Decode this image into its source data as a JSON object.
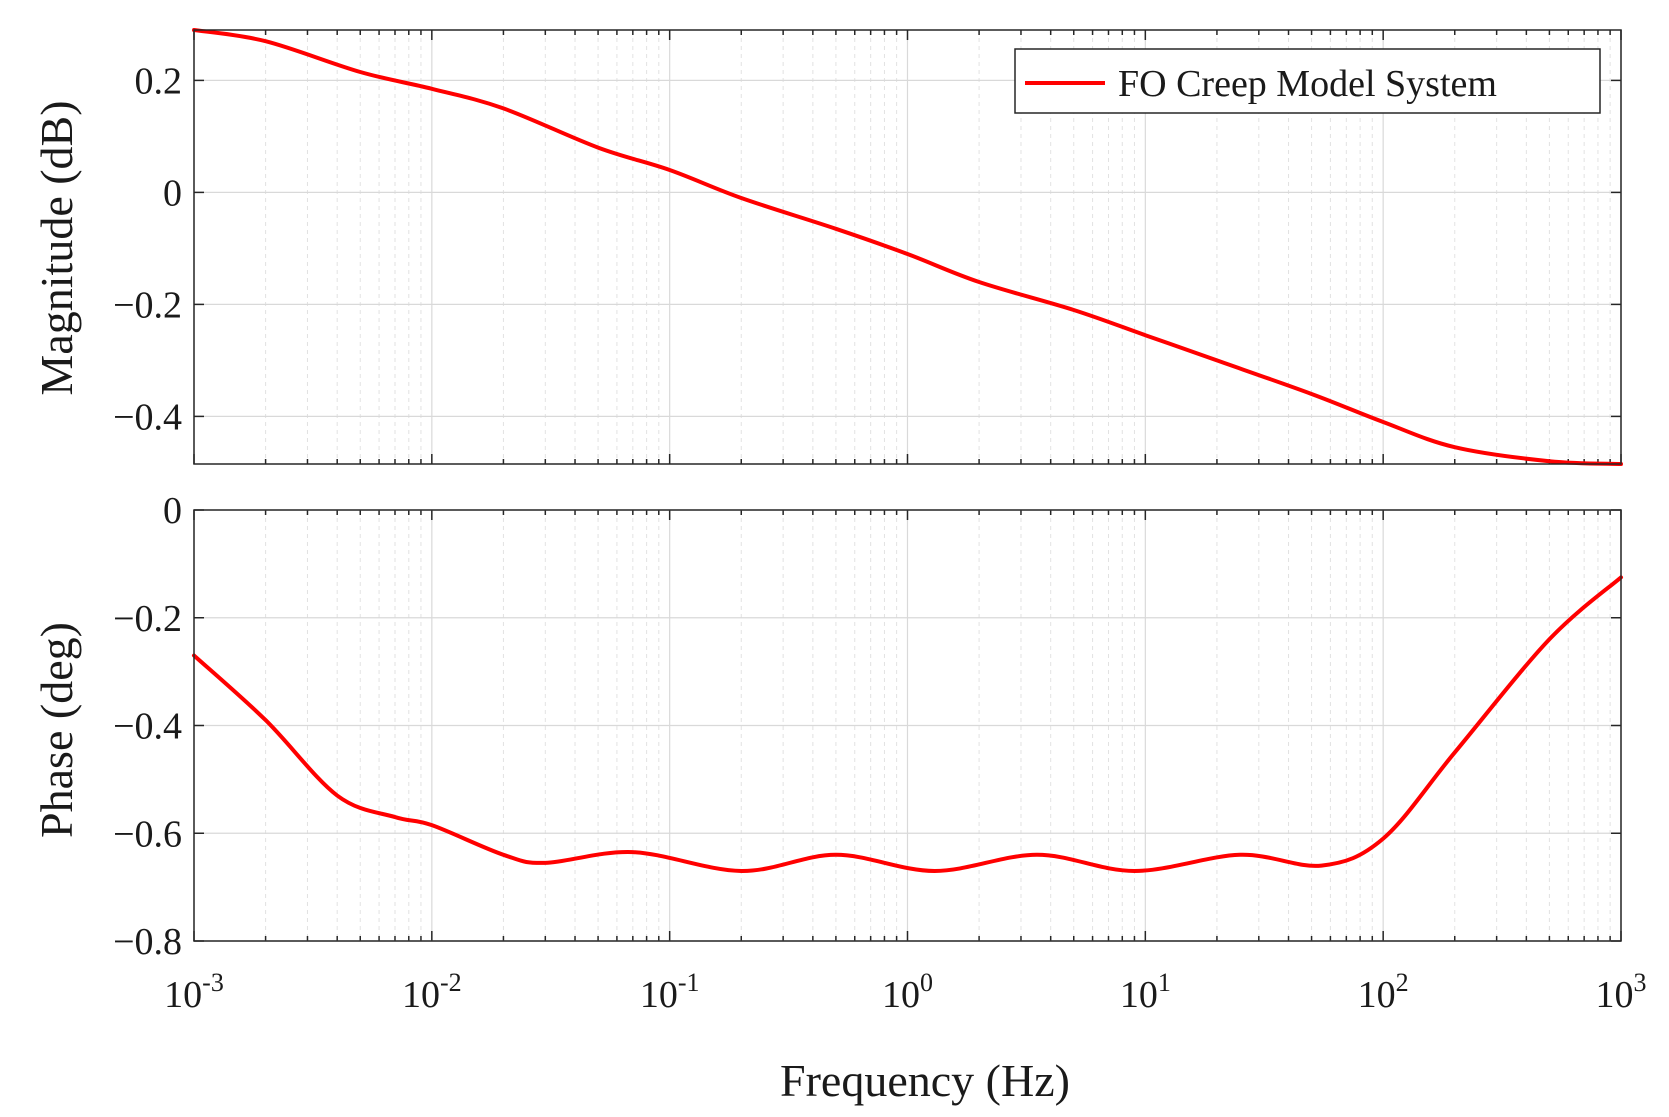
{
  "chart_data": [
    {
      "id": "magnitude",
      "type": "line",
      "xscale": "log",
      "xlim": [
        0.001,
        1000
      ],
      "ylim": [
        -0.485,
        0.29
      ],
      "yticks": [
        0.2,
        0,
        -0.2,
        -0.4
      ],
      "ytick_labels": [
        "0.2",
        "0",
        "−0.2",
        "−0.4"
      ],
      "ylabel": "Magnitude (dB)",
      "xlabel": "",
      "grid": true,
      "legend": {
        "placement": "top-right",
        "entries": [
          "FO Creep Model System"
        ]
      },
      "series": [
        {
          "name": "FO Creep Model System",
          "color": "#ff0000",
          "x": [
            0.001,
            0.002,
            0.005,
            0.01,
            0.02,
            0.05,
            0.1,
            0.2,
            0.5,
            1,
            2,
            5,
            10,
            20,
            50,
            100,
            200,
            500,
            1000
          ],
          "y": [
            0.29,
            0.27,
            0.215,
            0.185,
            0.15,
            0.08,
            0.04,
            -0.01,
            -0.065,
            -0.11,
            -0.16,
            -0.21,
            -0.255,
            -0.3,
            -0.36,
            -0.41,
            -0.455,
            -0.48,
            -0.485
          ]
        }
      ]
    },
    {
      "id": "phase",
      "type": "line",
      "xscale": "log",
      "xlim": [
        0.001,
        1000
      ],
      "ylim": [
        -0.8,
        0
      ],
      "yticks": [
        0,
        -0.2,
        -0.4,
        -0.6,
        -0.8
      ],
      "ytick_labels": [
        "0",
        "−0.2",
        "−0.4",
        "−0.6",
        "−0.8"
      ],
      "ylabel": "Phase (deg)",
      "xlabel": "Frequency (Hz)",
      "xticks": [
        0.001,
        0.01,
        0.1,
        1,
        10,
        100,
        1000
      ],
      "xtick_labels": [
        {
          "base": "10",
          "exp": "-3"
        },
        {
          "base": "10",
          "exp": "-2"
        },
        {
          "base": "10",
          "exp": "-1"
        },
        {
          "base": "10",
          "exp": "0"
        },
        {
          "base": "10",
          "exp": "1"
        },
        {
          "base": "10",
          "exp": "2"
        },
        {
          "base": "10",
          "exp": "3"
        }
      ],
      "grid": true,
      "series": [
        {
          "name": "FO Creep Model System",
          "color": "#ff0000",
          "x": [
            0.001,
            0.002,
            0.004,
            0.007,
            0.01,
            0.02,
            0.03,
            0.07,
            0.2,
            0.5,
            1.3,
            3.5,
            9,
            25,
            55,
            100,
            200,
            500,
            1000
          ],
          "y": [
            -0.27,
            -0.39,
            -0.53,
            -0.57,
            -0.585,
            -0.64,
            -0.655,
            -0.635,
            -0.67,
            -0.64,
            -0.67,
            -0.64,
            -0.67,
            -0.64,
            -0.66,
            -0.61,
            -0.45,
            -0.24,
            -0.125
          ]
        }
      ]
    }
  ]
}
